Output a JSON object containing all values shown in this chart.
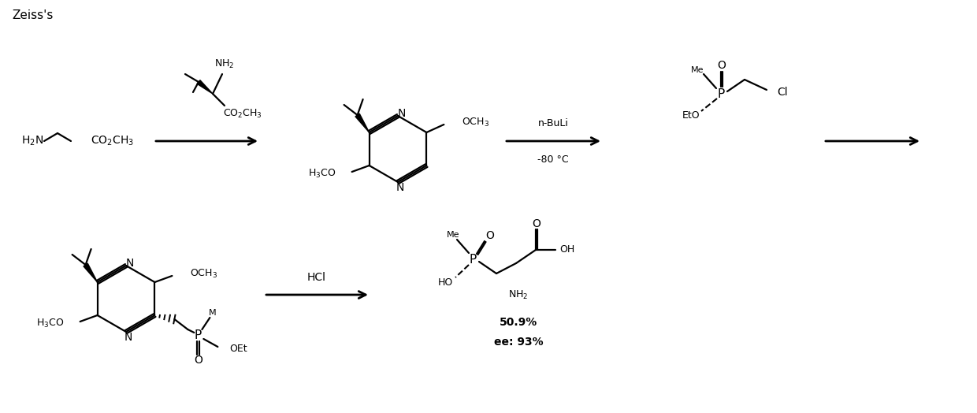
{
  "bg_color": "#ffffff",
  "text_color": "#000000",
  "fig_width": 12.4,
  "fig_height": 5.24,
  "zeiss_label": "Zeiss's",
  "reagent1_line1": "n-BuLi",
  "reagent1_line2": "-80 °C",
  "reagent2": "HCl",
  "yield_text": "50.9%",
  "ee_text": "ee: 93%"
}
